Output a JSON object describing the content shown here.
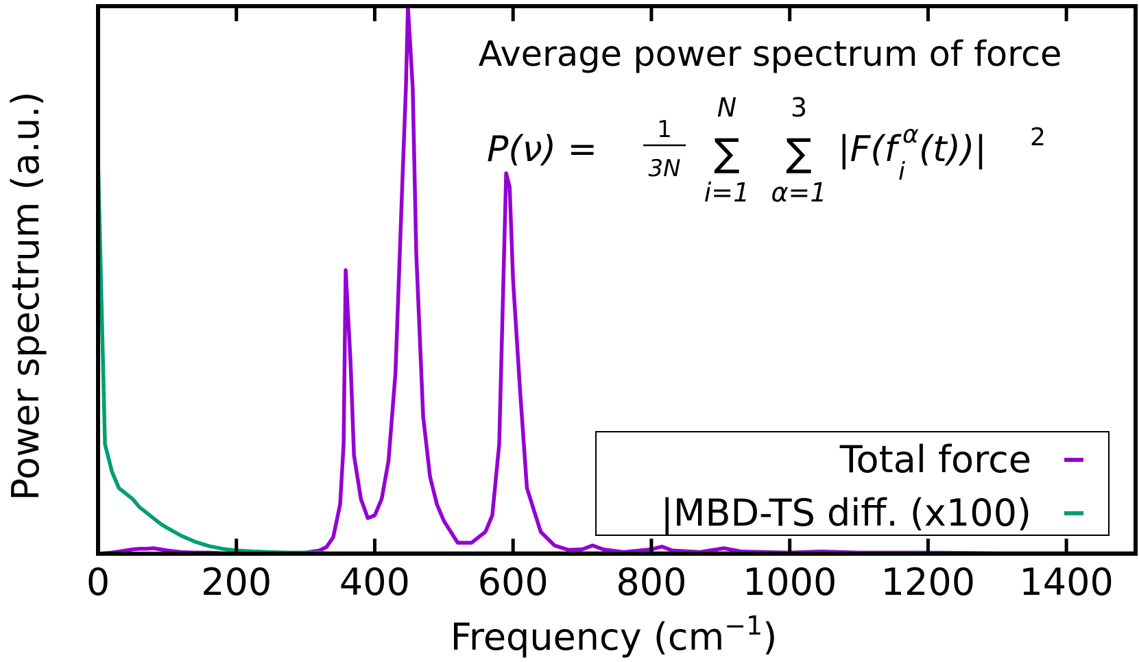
{
  "chart_data": {
    "type": "line",
    "title": "Average power spectrum of force",
    "formula": {
      "lhs": "P(ν) =",
      "frac_num": "1",
      "frac_den": "3N",
      "sum_symbol": "∑",
      "sum1_top": "N",
      "sum1_bottom": "i=1",
      "sum2_top": "3",
      "sum2_bottom": "α=1",
      "rhs_open": "|F(f",
      "rhs_sup": "α",
      "rhs_sub": "i",
      "rhs_close": "(t))|",
      "rhs_power": "2"
    },
    "x_label": {
      "text": "Frequency (cm",
      "sup": "−1",
      "end": ")"
    },
    "y_label": "Power spectrum (a.u.)",
    "x": [
      0,
      10,
      20,
      30,
      40,
      50,
      60,
      70,
      80,
      90,
      100,
      120,
      140,
      160,
      180,
      200,
      225,
      250,
      275,
      300,
      320,
      330,
      340,
      350,
      355,
      358,
      365,
      370,
      380,
      390,
      400,
      410,
      420,
      430,
      440,
      445,
      448,
      455,
      460,
      470,
      480,
      490,
      500,
      520,
      540,
      560,
      570,
      580,
      585,
      590,
      595,
      600,
      610,
      620,
      640,
      660,
      680,
      700,
      715,
      730,
      760,
      800,
      815,
      830,
      870,
      905,
      930,
      1000,
      1045,
      1100,
      1200,
      1300,
      1400,
      1500
    ],
    "series": [
      {
        "name": "Total force",
        "color": "#9400d3",
        "values": [
          0,
          0.001,
          0.002,
          0.004,
          0.006,
          0.008,
          0.009,
          0.009,
          0.01,
          0.008,
          0.006,
          0.003,
          0.002,
          0.002,
          0.001,
          0.001,
          0.001,
          0.001,
          0.001,
          0.002,
          0.006,
          0.012,
          0.03,
          0.09,
          0.2,
          0.518,
          0.35,
          0.18,
          0.1,
          0.065,
          0.07,
          0.1,
          0.17,
          0.33,
          0.68,
          0.85,
          1.0,
          0.85,
          0.55,
          0.25,
          0.14,
          0.09,
          0.06,
          0.02,
          0.02,
          0.04,
          0.07,
          0.2,
          0.45,
          0.695,
          0.67,
          0.5,
          0.3,
          0.12,
          0.04,
          0.015,
          0.007,
          0.008,
          0.015,
          0.008,
          0.003,
          0.008,
          0.013,
          0.006,
          0.003,
          0.01,
          0.004,
          0.002,
          0.004,
          0.002,
          0.002,
          0.001,
          0.001,
          0.001
        ]
      },
      {
        "name": "|MBD-TS diff. (x100)",
        "color": "#009e73",
        "values": [
          0.72,
          0.2,
          0.15,
          0.12,
          0.11,
          0.1,
          0.085,
          0.075,
          0.065,
          0.055,
          0.047,
          0.033,
          0.022,
          0.014,
          0.009,
          0.006,
          0.004,
          0.003,
          0.002,
          0.002,
          0.002,
          0.001,
          0.001,
          0.001,
          0.001,
          0.001,
          0.001,
          0.001,
          0.001,
          0.001,
          0.001,
          0.001,
          0.001,
          0.001,
          0.001,
          0.001,
          0.001,
          0.001,
          0.001,
          0.001,
          0.001,
          0.001,
          0.001,
          0.001,
          0.001,
          0.001,
          0.001,
          0.001,
          0.001,
          0.001,
          0.001,
          0.001,
          0.001,
          0.001,
          0.001,
          0.001,
          0.001,
          0.001,
          0.001,
          0.001,
          0.001,
          0.001,
          0.001,
          0.001,
          0.001,
          0.001,
          0.001,
          0.001,
          0.001,
          0.001,
          0.001,
          0.001,
          0.001,
          0.001
        ]
      }
    ],
    "xlim": [
      0,
      1500
    ],
    "xticks": [
      0,
      200,
      400,
      600,
      800,
      1000,
      1200,
      1400
    ],
    "ylim": [
      0,
      1
    ],
    "legend": "lower right"
  }
}
